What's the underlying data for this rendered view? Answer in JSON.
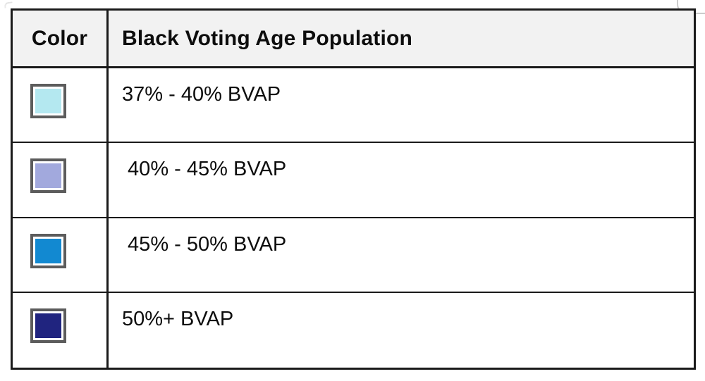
{
  "legend": {
    "header": {
      "color_column": "Color",
      "population_column": "Black Voting Age Population"
    },
    "rows": [
      {
        "label": "37% - 40% BVAP",
        "swatch_color": "#b4e8f0",
        "swatch_name": "light-cyan"
      },
      {
        "label": " 40% - 45% BVAP",
        "swatch_color": "#a2a9dd",
        "swatch_name": "periwinkle"
      },
      {
        "label": " 45% - 50% BVAP",
        "swatch_color": "#1289d1",
        "swatch_name": "bright-blue"
      },
      {
        "label": "50%+ BVAP",
        "swatch_color": "#20247f",
        "swatch_name": "dark-navy"
      }
    ],
    "style": {
      "table_border_color": "#1a1a1a",
      "header_background": "#f2f2f2",
      "swatch_border_color": "#5c5c5c"
    }
  }
}
